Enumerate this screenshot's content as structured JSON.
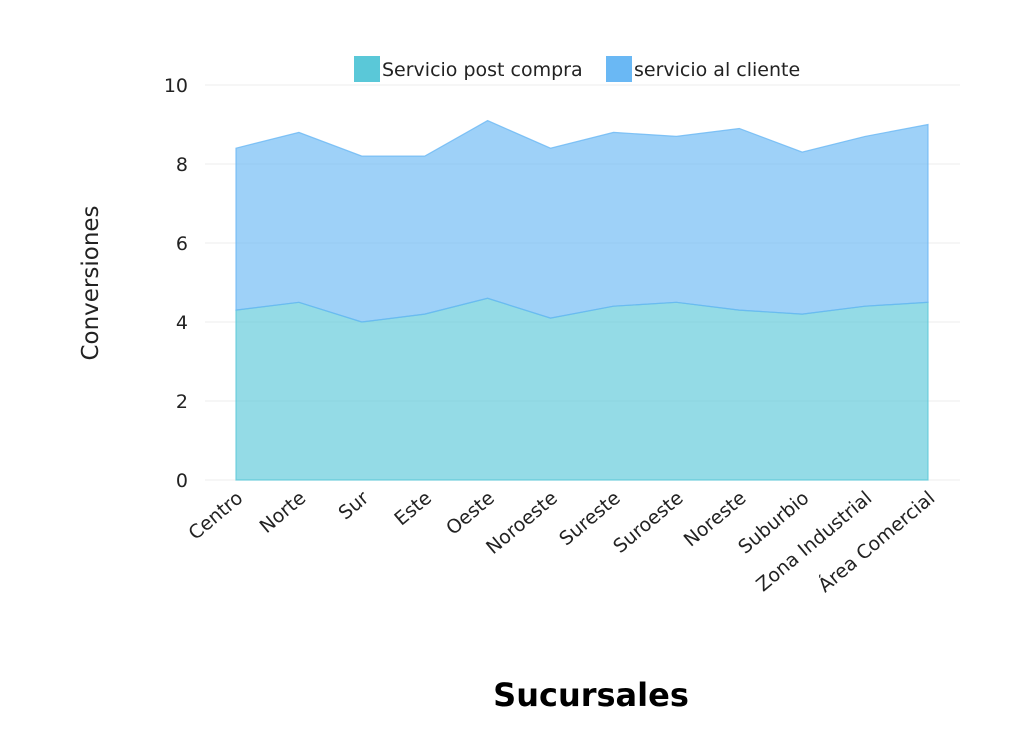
{
  "chart_data": {
    "type": "area",
    "stacked": true,
    "categories": [
      "Centro",
      "Norte",
      "Sur",
      "Este",
      "Oeste",
      "Noroeste",
      "Sureste",
      "Suroeste",
      "Noreste",
      "Suburbio",
      "Zona Industrial",
      "Área Comercial"
    ],
    "series": [
      {
        "name": "Servicio post compra",
        "color": "#5ac8d8",
        "values": [
          4.3,
          4.5,
          4.0,
          4.2,
          4.6,
          4.1,
          4.4,
          4.5,
          4.3,
          4.2,
          4.4,
          4.5
        ]
      },
      {
        "name": "servicio al cliente",
        "color": "#6ab8f4",
        "values": [
          4.1,
          4.3,
          4.2,
          4.0,
          4.5,
          4.3,
          4.4,
          4.2,
          4.6,
          4.1,
          4.3,
          4.5
        ]
      }
    ],
    "ylim": [
      0,
      10
    ],
    "yticks": [
      "0",
      "2",
      "4",
      "6",
      "8",
      "10"
    ],
    "xlabel": "Sucursales",
    "ylabel": "Conversiones",
    "grid": true,
    "legend_position": "top-center"
  }
}
